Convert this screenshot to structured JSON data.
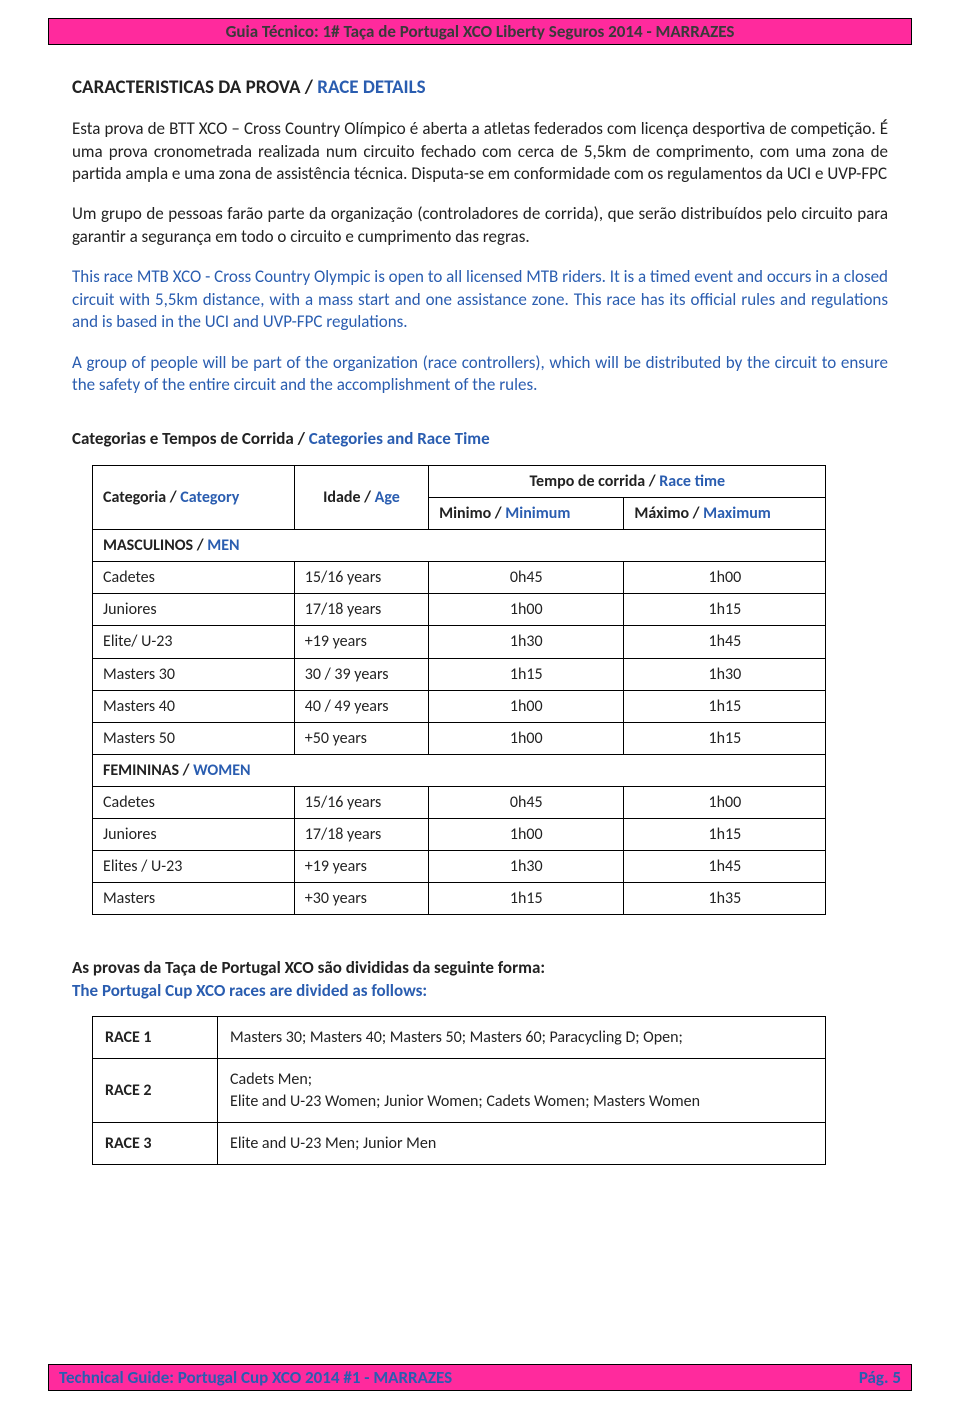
{
  "header": {
    "text": "Guia Técnico: 1# Taça de Portugal XCO Liberty Seguros 2014 - MARRAZES"
  },
  "title": {
    "pt": "CARACTERISTICAS DA PROVA / ",
    "en": "RACE DETAILS"
  },
  "p1": "Esta prova de BTT XCO – Cross Country Olímpico é aberta a atletas federados com licença desportiva de competição. É uma prova cronometrada realizada num circuito fechado com cerca de 5,5km de comprimento, com uma zona de partida ampla e uma zona de assistência técnica. Disputa-se em conformidade com os regulamentos da UCI e UVP-FPC",
  "p2": "Um grupo de pessoas farão parte da organização (controladores de corrida), que serão distribuídos pelo circuito para garantir a segurança em todo o circuito e cumprimento das regras.",
  "p3": "This race MTB XCO - Cross Country Olympic is open to all licensed MTB riders. It is a timed event and occurs in a closed circuit with 5,5km distance, with a mass start and one assistance zone. This race has its official rules and regulations and is based in the UCI and UVP-FPC regulations.",
  "p4": "A group of people will be part of the organization (race controllers), which will be distributed by the circuit to ensure the safety of the entire circuit and the accomplishment of the rules.",
  "subhead": {
    "pt": "Categorias e Tempos de Corrida / ",
    "en": "Categories and Race Time"
  },
  "colhead": {
    "cat_pt": "Categoria / ",
    "cat_en": "Category",
    "age_pt": "Idade / ",
    "age_en": "Age",
    "time_pt": "Tempo de corrida / ",
    "time_en": "Race time",
    "min_pt": "Minimo / ",
    "min_en": "Minimum",
    "max_pt": "Máximo / ",
    "max_en": "Maximum"
  },
  "sec_men": {
    "pt": "MASCULINOS / ",
    "en": "MEN"
  },
  "sec_women": {
    "pt": "FEMININAS / ",
    "en": "WOMEN"
  },
  "rows_men": [
    {
      "cat": "Cadetes",
      "age": "15/16  years",
      "min": "0h45",
      "max": "1h00"
    },
    {
      "cat": "Juniores",
      "age": "17/18  years",
      "min": "1h00",
      "max": "1h15"
    },
    {
      "cat": "Elite/ U-23",
      "age": "+19  years",
      "min": "1h30",
      "max": "1h45"
    },
    {
      "cat": "Masters 30",
      "age": "30 / 39 years",
      "min": "1h15",
      "max": "1h30"
    },
    {
      "cat": "Masters 40",
      "age": "40 / 49 years",
      "min": "1h00",
      "max": "1h15"
    },
    {
      "cat": "Masters 50",
      "age": "+50  years",
      "min": "1h00",
      "max": "1h15"
    }
  ],
  "rows_women": [
    {
      "cat": "Cadetes",
      "age": "15/16  years",
      "min": "0h45",
      "max": "1h00"
    },
    {
      "cat": "Juniores",
      "age": "17/18  years",
      "min": "1h00",
      "max": "1h15"
    },
    {
      "cat": "Elites / U-23",
      "age": "+19  years",
      "min": "1h30",
      "max": "1h45"
    },
    {
      "cat": "Masters",
      "age": "+30  years",
      "min": "1h15",
      "max": "1h35"
    }
  ],
  "divided": {
    "pt": "As provas da Taça de Portugal XCO são divididas da seguinte forma:",
    "en": "The Portugal Cup XCO races are divided as follows:"
  },
  "races": [
    {
      "label": "RACE 1",
      "desc": "Masters 30; Masters 40; Masters 50; Masters 60; Paracycling D; Open;"
    },
    {
      "label": "RACE 2",
      "desc": "Cadets Men;\nElite and U-23 Women; Junior Women; Cadets Women; Masters Women"
    },
    {
      "label": "RACE 3",
      "desc": "Elite and U-23 Men; Junior Men"
    }
  ],
  "footer": {
    "left": "Technical Guide: Portugal Cup XCO 2014 #1 - MARRAZES",
    "right": "Pág. 5"
  }
}
